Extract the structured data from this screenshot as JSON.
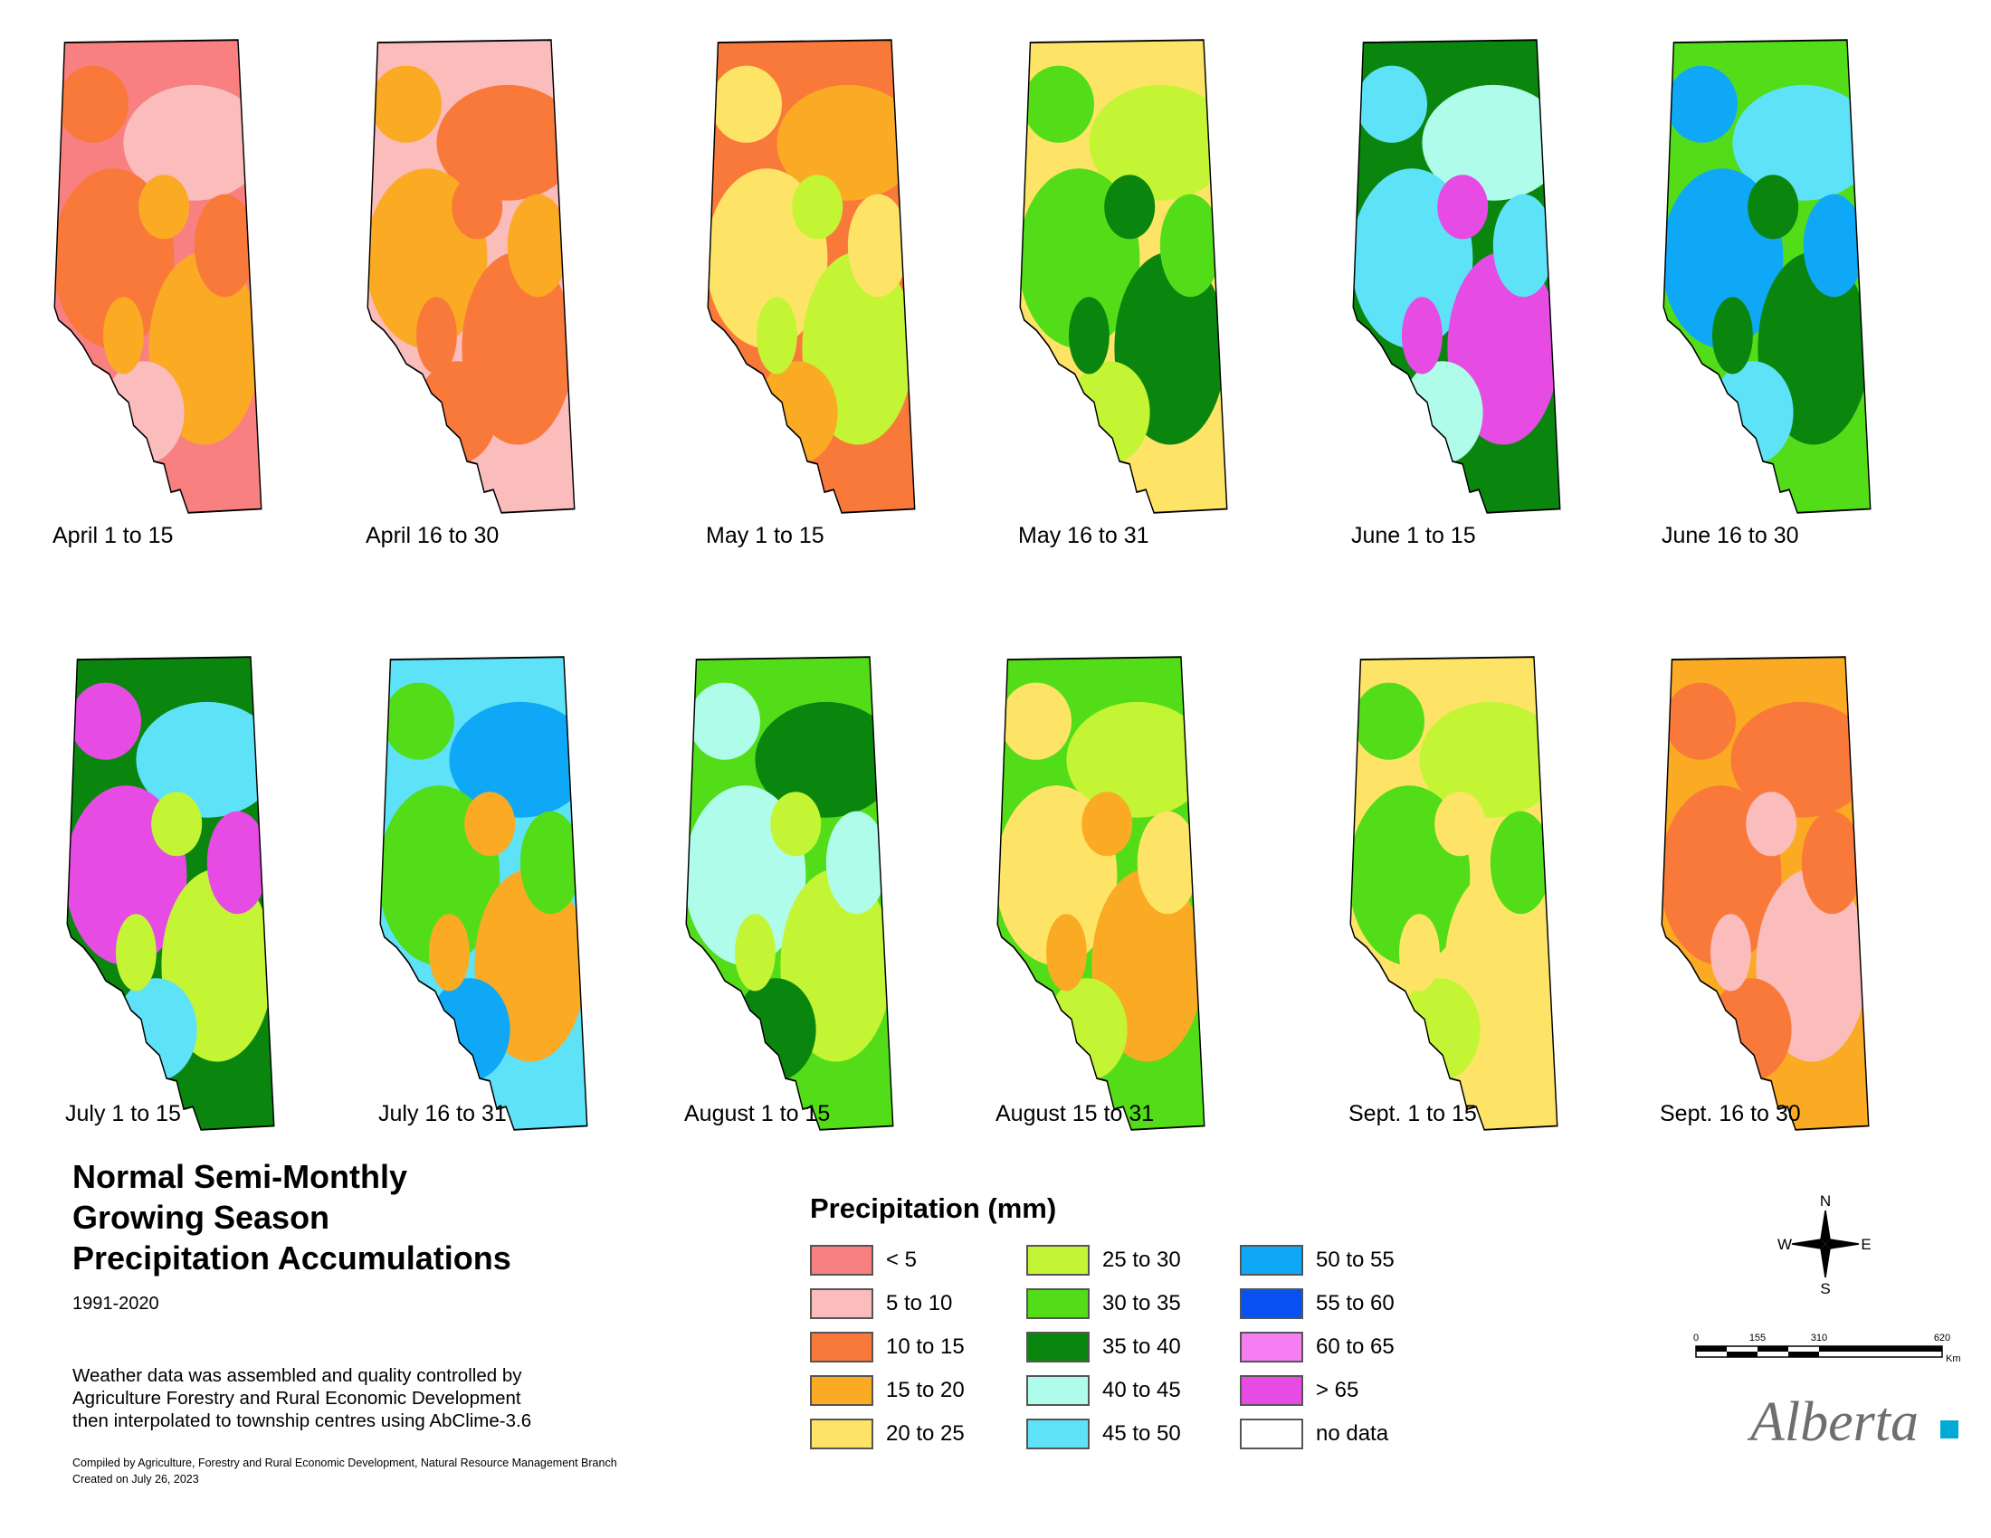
{
  "panels_row1": [
    {
      "label": "April 1 to 15",
      "colors": [
        "#f88080",
        "#fbbcbc",
        "#f9793a",
        "#fbaa24"
      ]
    },
    {
      "label": "April 16 to 30",
      "colors": [
        "#fbbcbc",
        "#f9793a",
        "#fbaa24",
        "#f9793a"
      ]
    },
    {
      "label": "May 1 to 15",
      "colors": [
        "#f9793a",
        "#fbaa24",
        "#fee466",
        "#c3f535"
      ]
    },
    {
      "label": "May 16 to 31",
      "colors": [
        "#fee466",
        "#c3f535",
        "#53dd18",
        "#0a860e"
      ]
    },
    {
      "label": "June 1 to 15",
      "colors": [
        "#0a860e",
        "#b0fcea",
        "#5ee2f7",
        "#e64be4"
      ]
    },
    {
      "label": "June 16 to 30",
      "colors": [
        "#53dd18",
        "#5ee2f7",
        "#0fa8f7",
        "#0a860e"
      ]
    }
  ],
  "panels_row2": [
    {
      "label": "July 1 to 15",
      "colors": [
        "#0a860e",
        "#5ee2f7",
        "#e64be4",
        "#c3f535"
      ]
    },
    {
      "label": "July 16 to 31",
      "colors": [
        "#5ee2f7",
        "#0fa8f7",
        "#53dd18",
        "#fbaa24"
      ]
    },
    {
      "label": "August 1 to 15",
      "colors": [
        "#53dd18",
        "#0a860e",
        "#b0fcea",
        "#c3f535"
      ]
    },
    {
      "label": "August 15 to 31",
      "colors": [
        "#53dd18",
        "#c3f535",
        "#fee466",
        "#fbaa24"
      ]
    },
    {
      "label": "Sept. 1 to 15",
      "colors": [
        "#fee466",
        "#c3f535",
        "#53dd18",
        "#fee466"
      ]
    },
    {
      "label": "Sept. 16 to 30",
      "colors": [
        "#fbaa24",
        "#f9793a",
        "#f9793a",
        "#fbbcbc"
      ]
    }
  ],
  "title_lines": [
    "Normal Semi-Monthly",
    "Growing Season",
    "Precipitation Accumulations"
  ],
  "period": "1991-2020",
  "note_lines": [
    "Weather data was assembled and quality controlled by",
    "Agriculture Forestry and Rural Economic Development",
    "then interpolated to township centres using AbClime-3.6"
  ],
  "credits": [
    "Compiled by Agriculture, Forestry and Rural Economic Development, Natural Resource Management Branch",
    "Created on July 26, 2023"
  ],
  "legend": {
    "title": "Precipitation (mm)",
    "items": [
      {
        "label": "< 5",
        "color": "#f88080"
      },
      {
        "label": "5 to 10",
        "color": "#fbbcbc"
      },
      {
        "label": "10 to 15",
        "color": "#f9793a"
      },
      {
        "label": "15 to 20",
        "color": "#fbaa24"
      },
      {
        "label": "20 to 25",
        "color": "#fee466"
      },
      {
        "label": "25 to 30",
        "color": "#c3f535"
      },
      {
        "label": "30 to 35",
        "color": "#53dd18"
      },
      {
        "label": "35 to 40",
        "color": "#0a860e"
      },
      {
        "label": "40 to 45",
        "color": "#b0fcea"
      },
      {
        "label": "45 to 50",
        "color": "#5ee2f7"
      },
      {
        "label": "50 to 55",
        "color": "#0fa8f7"
      },
      {
        "label": "55 to 60",
        "color": "#0850f0"
      },
      {
        "label": "60 to 65",
        "color": "#f67ef3"
      },
      {
        "label": "> 65",
        "color": "#e64be4"
      },
      {
        "label": "no data",
        "color": "#ffffff"
      }
    ]
  },
  "compass": {
    "n": "N",
    "s": "S",
    "e": "E",
    "w": "W"
  },
  "scale": {
    "ticks": [
      "0",
      "155",
      "310",
      "620"
    ],
    "unit": "Km"
  },
  "logo": {
    "text": "Alberta",
    "square_color": "#00aad2"
  }
}
